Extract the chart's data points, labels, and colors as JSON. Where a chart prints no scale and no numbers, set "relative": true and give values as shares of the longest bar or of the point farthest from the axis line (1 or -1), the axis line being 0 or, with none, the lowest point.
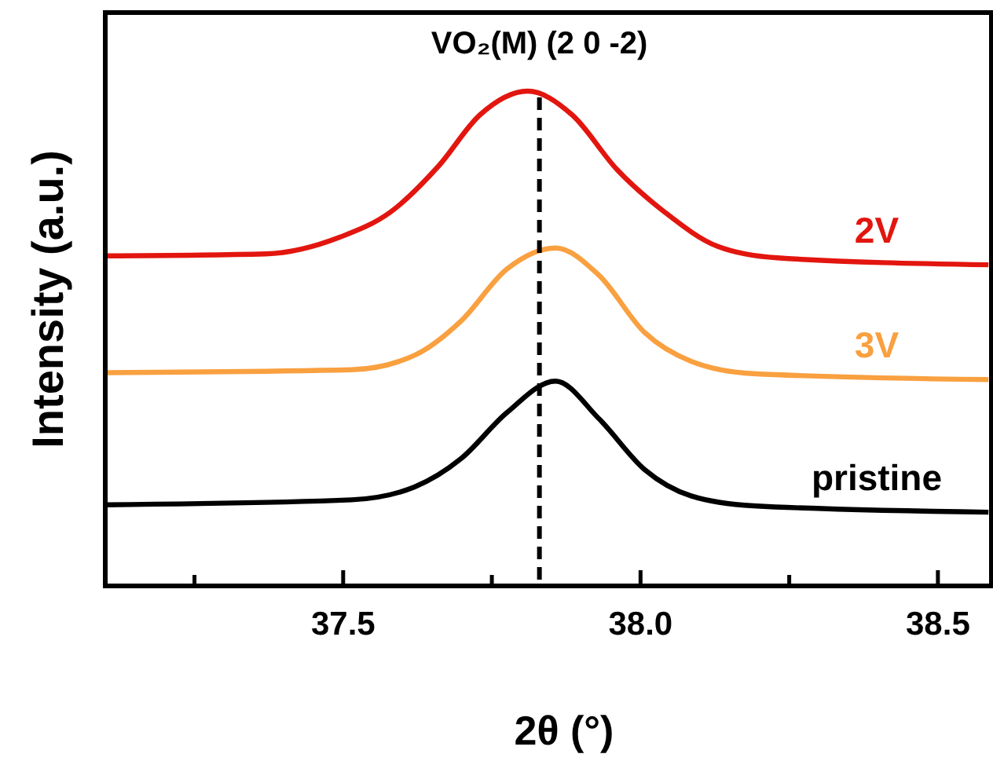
{
  "chart_data": {
    "type": "line",
    "xlabel": "2θ (°)",
    "ylabel": "Intensity (a.u.)",
    "relative": true,
    "tick_labels": "x",
    "line_style": "solid",
    "marker": "none",
    "xlim": [
      37.1,
      38.59
    ],
    "xticks": [
      {
        "value": 37.25,
        "label": null
      },
      {
        "value": 37.5,
        "label": "37.5"
      },
      {
        "value": 37.75,
        "label": null
      },
      {
        "value": 38.0,
        "label": "38.0"
      },
      {
        "value": 38.25,
        "label": null
      },
      {
        "value": 38.5,
        "label": "38.5"
      }
    ],
    "ref_lines": [
      {
        "axis": "x",
        "value": 37.83,
        "label": "VO₂(M) (2 0 -2)",
        "color": "#000000",
        "line_style": "dashed"
      }
    ],
    "series": [
      {
        "name": "2V",
        "color": "#e2160f",
        "x": [
          37.1,
          37.37,
          37.495,
          37.58,
          37.66,
          37.73,
          37.81,
          37.885,
          37.96,
          38.04,
          38.13,
          38.23,
          38.585
        ],
        "values": [
          0.667,
          0.671,
          0.705,
          0.756,
          0.848,
          0.952,
          1.0,
          0.952,
          0.842,
          0.756,
          0.686,
          0.663,
          0.649
        ]
      },
      {
        "name": "3V",
        "color": "#f9a040",
        "x": [
          37.1,
          37.514,
          37.62,
          37.698,
          37.775,
          37.857,
          37.93,
          38.007,
          38.085,
          38.19,
          38.585
        ],
        "values": [
          0.431,
          0.437,
          0.466,
          0.535,
          0.64,
          0.683,
          0.628,
          0.512,
          0.454,
          0.429,
          0.417
        ]
      },
      {
        "name": "pristine",
        "color": "#000000",
        "x": [
          37.1,
          37.514,
          37.62,
          37.698,
          37.775,
          37.857,
          37.93,
          38.007,
          38.085,
          38.19,
          38.585
        ],
        "values": [
          0.164,
          0.174,
          0.2,
          0.257,
          0.35,
          0.414,
          0.338,
          0.235,
          0.182,
          0.162,
          0.149
        ]
      }
    ]
  }
}
